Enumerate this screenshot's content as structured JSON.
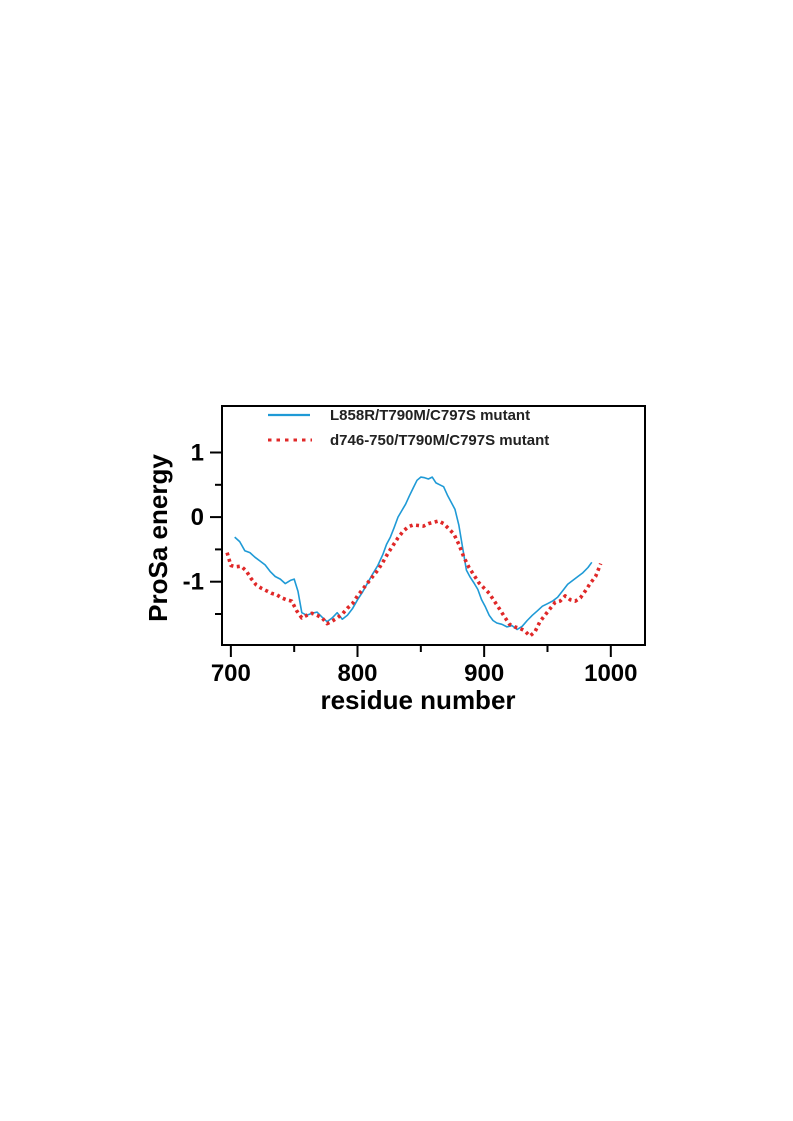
{
  "chart_data": {
    "type": "line",
    "xlabel": "residue number",
    "ylabel": "ProSa energy",
    "xlim": [
      693,
      1027
    ],
    "ylim": [
      -1.98,
      1.72
    ],
    "x_ticks_major": [
      700,
      800,
      900,
      1000
    ],
    "x_tick_labels": [
      "700",
      "800",
      "900",
      "1000"
    ],
    "x_ticks_minor": [
      750,
      850,
      950
    ],
    "y_ticks_major": [
      1,
      0,
      -1
    ],
    "y_tick_labels": [
      "1",
      "0",
      "-1"
    ],
    "y_ticks_minor": [
      0.5,
      -0.5,
      -1.5
    ],
    "grid": false,
    "legend": "top",
    "series": [
      {
        "name": "L858R/T790M/C797S mutant",
        "color": "#1f9ad6",
        "style": "solid",
        "points": [
          [
            703,
            -0.31
          ],
          [
            707,
            -0.38
          ],
          [
            711,
            -0.52
          ],
          [
            715,
            -0.55
          ],
          [
            719,
            -0.62
          ],
          [
            723,
            -0.68
          ],
          [
            727,
            -0.74
          ],
          [
            731,
            -0.84
          ],
          [
            735,
            -0.92
          ],
          [
            739,
            -0.96
          ],
          [
            743,
            -1.03
          ],
          [
            747,
            -0.98
          ],
          [
            750,
            -0.96
          ],
          [
            753,
            -1.15
          ],
          [
            756,
            -1.48
          ],
          [
            760,
            -1.52
          ],
          [
            764,
            -1.49
          ],
          [
            768,
            -1.47
          ],
          [
            772,
            -1.55
          ],
          [
            776,
            -1.62
          ],
          [
            780,
            -1.56
          ],
          [
            784,
            -1.48
          ],
          [
            788,
            -1.58
          ],
          [
            792,
            -1.52
          ],
          [
            796,
            -1.42
          ],
          [
            800,
            -1.28
          ],
          [
            804,
            -1.16
          ],
          [
            808,
            -1.02
          ],
          [
            812,
            -0.88
          ],
          [
            816,
            -0.75
          ],
          [
            820,
            -0.58
          ],
          [
            823,
            -0.42
          ],
          [
            826,
            -0.31
          ],
          [
            829,
            -0.16
          ],
          [
            832,
            0.0
          ],
          [
            835,
            0.1
          ],
          [
            838,
            0.2
          ],
          [
            841,
            0.33
          ],
          [
            844,
            0.45
          ],
          [
            847,
            0.57
          ],
          [
            850,
            0.62
          ],
          [
            853,
            0.61
          ],
          [
            856,
            0.59
          ],
          [
            859,
            0.62
          ],
          [
            862,
            0.53
          ],
          [
            865,
            0.5
          ],
          [
            868,
            0.47
          ],
          [
            871,
            0.34
          ],
          [
            874,
            0.23
          ],
          [
            877,
            0.12
          ],
          [
            880,
            -0.12
          ],
          [
            883,
            -0.47
          ],
          [
            886,
            -0.82
          ],
          [
            889,
            -0.93
          ],
          [
            892,
            -1.02
          ],
          [
            895,
            -1.12
          ],
          [
            898,
            -1.28
          ],
          [
            901,
            -1.39
          ],
          [
            904,
            -1.52
          ],
          [
            907,
            -1.6
          ],
          [
            910,
            -1.64
          ],
          [
            914,
            -1.66
          ],
          [
            918,
            -1.7
          ],
          [
            922,
            -1.68
          ],
          [
            926,
            -1.74
          ],
          [
            930,
            -1.69
          ],
          [
            934,
            -1.6
          ],
          [
            938,
            -1.52
          ],
          [
            942,
            -1.45
          ],
          [
            946,
            -1.38
          ],
          [
            950,
            -1.34
          ],
          [
            954,
            -1.3
          ],
          [
            958,
            -1.24
          ],
          [
            962,
            -1.14
          ],
          [
            966,
            -1.04
          ],
          [
            970,
            -0.98
          ],
          [
            974,
            -0.92
          ],
          [
            978,
            -0.86
          ],
          [
            982,
            -0.78
          ],
          [
            985,
            -0.7
          ]
        ]
      },
      {
        "name": "d746-750/T790M/C797S mutant",
        "color": "#e02828",
        "style": "dotted",
        "points": [
          [
            697,
            -0.55
          ],
          [
            700,
            -0.75
          ],
          [
            704,
            -0.77
          ],
          [
            708,
            -0.76
          ],
          [
            712,
            -0.83
          ],
          [
            716,
            -0.95
          ],
          [
            720,
            -1.05
          ],
          [
            724,
            -1.1
          ],
          [
            728,
            -1.14
          ],
          [
            732,
            -1.18
          ],
          [
            736,
            -1.2
          ],
          [
            740,
            -1.25
          ],
          [
            744,
            -1.28
          ],
          [
            748,
            -1.3
          ],
          [
            752,
            -1.45
          ],
          [
            756,
            -1.56
          ],
          [
            760,
            -1.52
          ],
          [
            764,
            -1.49
          ],
          [
            768,
            -1.52
          ],
          [
            772,
            -1.56
          ],
          [
            776,
            -1.65
          ],
          [
            780,
            -1.61
          ],
          [
            784,
            -1.56
          ],
          [
            788,
            -1.5
          ],
          [
            792,
            -1.41
          ],
          [
            796,
            -1.34
          ],
          [
            800,
            -1.22
          ],
          [
            804,
            -1.12
          ],
          [
            808,
            -1.02
          ],
          [
            812,
            -0.92
          ],
          [
            816,
            -0.82
          ],
          [
            820,
            -0.7
          ],
          [
            824,
            -0.56
          ],
          [
            828,
            -0.44
          ],
          [
            832,
            -0.32
          ],
          [
            836,
            -0.22
          ],
          [
            840,
            -0.15
          ],
          [
            844,
            -0.12
          ],
          [
            848,
            -0.13
          ],
          [
            852,
            -0.14
          ],
          [
            856,
            -0.1
          ],
          [
            860,
            -0.08
          ],
          [
            864,
            -0.06
          ],
          [
            868,
            -0.1
          ],
          [
            872,
            -0.18
          ],
          [
            876,
            -0.26
          ],
          [
            880,
            -0.42
          ],
          [
            884,
            -0.62
          ],
          [
            888,
            -0.78
          ],
          [
            892,
            -0.9
          ],
          [
            896,
            -1.02
          ],
          [
            900,
            -1.1
          ],
          [
            904,
            -1.18
          ],
          [
            908,
            -1.3
          ],
          [
            912,
            -1.42
          ],
          [
            916,
            -1.54
          ],
          [
            920,
            -1.66
          ],
          [
            924,
            -1.7
          ],
          [
            928,
            -1.72
          ],
          [
            932,
            -1.76
          ],
          [
            936,
            -1.84
          ],
          [
            940,
            -1.78
          ],
          [
            944,
            -1.62
          ],
          [
            948,
            -1.52
          ],
          [
            952,
            -1.42
          ],
          [
            956,
            -1.32
          ],
          [
            960,
            -1.3
          ],
          [
            964,
            -1.22
          ],
          [
            968,
            -1.28
          ],
          [
            972,
            -1.3
          ],
          [
            976,
            -1.25
          ],
          [
            980,
            -1.14
          ],
          [
            984,
            -1.02
          ],
          [
            988,
            -0.92
          ],
          [
            992,
            -0.72
          ]
        ]
      }
    ]
  }
}
